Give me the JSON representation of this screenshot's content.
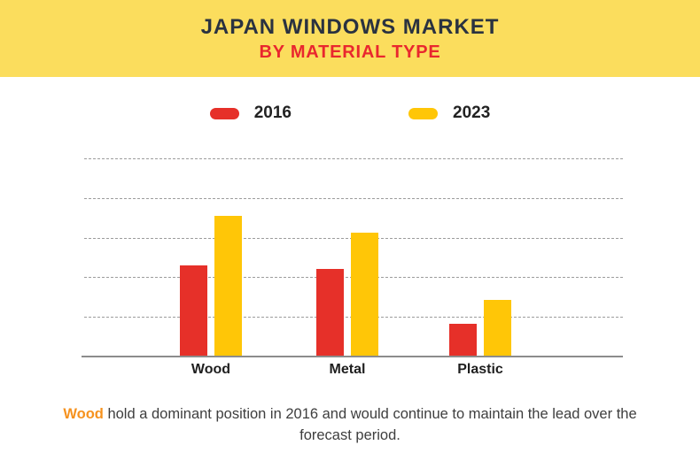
{
  "header": {
    "title": "JAPAN WINDOWS MARKET",
    "subtitle": "BY MATERIAL TYPE",
    "bg_color": "#FBDD5D",
    "title_color": "#2A3240",
    "subtitle_color": "#E9272E"
  },
  "legend": {
    "items": [
      {
        "label": "2016",
        "color": "#E63029"
      },
      {
        "label": "2023",
        "color": "#FFC607"
      }
    ]
  },
  "chart_data": {
    "type": "bar",
    "title": "JAPAN WINDOWS MARKET BY MATERIAL TYPE",
    "categories": [
      "Wood",
      "Metal",
      "Plastic"
    ],
    "series": [
      {
        "name": "2016",
        "color": "#E63029",
        "values": [
          2.3,
          2.2,
          0.83
        ]
      },
      {
        "name": "2023",
        "color": "#FFC607",
        "values": [
          3.55,
          3.13,
          1.42
        ]
      }
    ],
    "xlabel": "",
    "ylabel": "",
    "ylim": [
      0,
      5
    ],
    "gridline_count": 5,
    "grid_style": "horizontal-dashed",
    "y_axis_labels_visible": false,
    "legend_position": "top-center"
  },
  "caption": {
    "highlight": "Wood",
    "rest": " hold a dominant position in 2016 and would continue to maintain the lead over the forecast period.",
    "highlight_color": "#F6921E",
    "text_color": "#3E3E3E"
  }
}
